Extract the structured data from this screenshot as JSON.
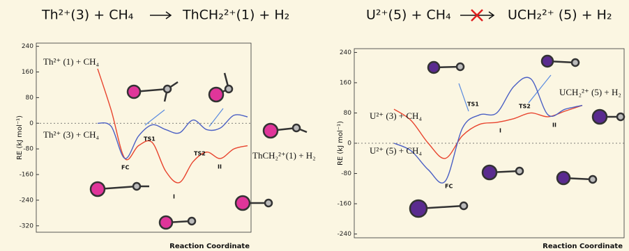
{
  "chart_data": [
    {
      "type": "line",
      "reactants": "Th²⁺(3) + CH₄",
      "products": "ThCH₂²⁺(1) + H₂",
      "reaction_blocked": false,
      "y_label": "RE (kJ mol⁻¹)",
      "x_label": "Reaction Coordinate",
      "categories": [
        null,
        null,
        null,
        null,
        null,
        null,
        null,
        null,
        null,
        null,
        null,
        null
      ],
      "series": [
        {
          "color": "#e8442e",
          "values": [
            170,
            40,
            -110,
            -70,
            -60,
            -150,
            -185,
            -120,
            -90,
            -110,
            -80,
            -70
          ]
        },
        {
          "color": "#4a5fc4",
          "values": [
            0,
            -10,
            -110,
            -40,
            -5,
            -20,
            -30,
            10,
            -20,
            -15,
            25,
            20
          ]
        }
      ],
      "ylim": [
        -340,
        250
      ],
      "yticks": [
        240,
        160,
        80,
        0,
        -80,
        -160,
        -240,
        -320
      ],
      "reference_lines": [
        0
      ],
      "annotations": [
        "Th²⁺ (1) + CH₄",
        "Th²⁺ (3) + CH₄",
        "ThCH₂²⁺(1) + H₂",
        "TS1",
        "TS2",
        "FC",
        "I",
        "II"
      ]
    },
    {
      "type": "line",
      "reactants": "U²⁺(5) + CH₄",
      "products": "UCH₂²⁺ (5) + H₂",
      "reaction_blocked": true,
      "y_label": "RE (kJ mol⁻¹)",
      "x_label": "Reaction Coordinate",
      "categories": [
        null,
        null,
        null,
        null,
        null,
        null,
        null,
        null,
        null,
        null,
        null,
        null
      ],
      "series": [
        {
          "color": "#e8442e",
          "values": [
            90,
            60,
            0,
            -40,
            20,
            50,
            55,
            65,
            80,
            70,
            85,
            100
          ]
        },
        {
          "color": "#4a5fc4",
          "values": [
            0,
            -20,
            -70,
            -100,
            40,
            75,
            80,
            150,
            170,
            75,
            90,
            100
          ]
        }
      ],
      "ylim": [
        -250,
        250
      ],
      "yticks": [
        240,
        160,
        80,
        0,
        -80,
        -160,
        -240
      ],
      "reference_lines": [
        0
      ],
      "annotations": [
        "U²⁺ (3) + CH₄",
        "U²⁺ (5) + CH₄",
        "UCH₂²⁺ (5) + H₂",
        "TS1",
        "TS2",
        "FC",
        "I",
        "II"
      ]
    }
  ]
}
